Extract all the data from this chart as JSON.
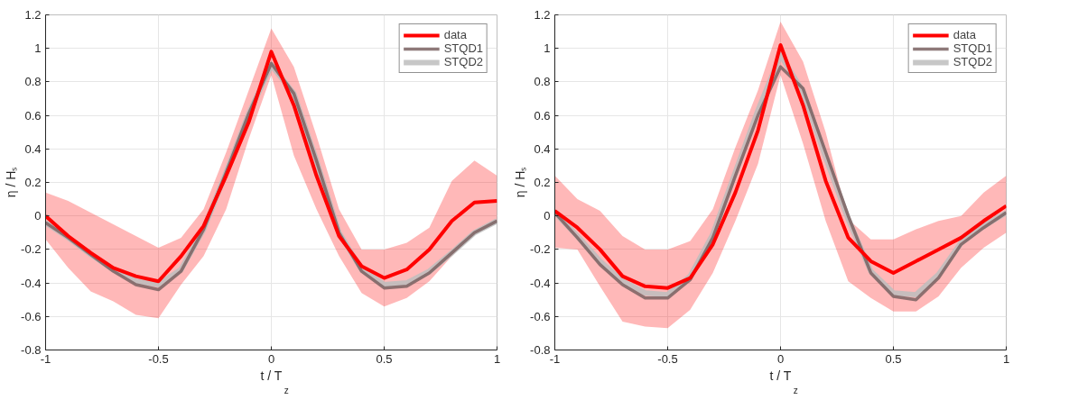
{
  "chart_data": [
    {
      "type": "line",
      "xlabel": "t / T$_{z}$",
      "ylabel": "η / Hₛ",
      "x": [
        -1,
        -0.9,
        -0.8,
        -0.7,
        -0.6,
        -0.5,
        -0.4,
        -0.3,
        -0.2,
        -0.1,
        0,
        0.1,
        0.2,
        0.3,
        0.4,
        0.5,
        0.6,
        0.7,
        0.8,
        0.9,
        1
      ],
      "series": [
        {
          "name": "data",
          "color": "#ff0000",
          "values": [
            0.0,
            -0.12,
            -0.22,
            -0.31,
            -0.36,
            -0.39,
            -0.24,
            -0.06,
            0.24,
            0.56,
            0.98,
            0.66,
            0.24,
            -0.12,
            -0.3,
            -0.37,
            -0.32,
            -0.2,
            -0.03,
            0.08,
            0.09
          ],
          "lower": [
            -0.14,
            -0.31,
            -0.45,
            -0.51,
            -0.59,
            -0.61,
            -0.41,
            -0.24,
            0.04,
            0.46,
            0.84,
            0.36,
            0.04,
            -0.24,
            -0.46,
            -0.54,
            -0.49,
            -0.39,
            -0.24,
            -0.1,
            -0.03
          ],
          "upper": [
            0.14,
            0.09,
            0.02,
            -0.05,
            -0.12,
            -0.19,
            -0.13,
            0.04,
            0.38,
            0.75,
            1.12,
            0.89,
            0.48,
            0.04,
            -0.2,
            -0.2,
            -0.16,
            -0.07,
            0.21,
            0.33,
            0.24
          ]
        },
        {
          "name": "STQD1",
          "color": "#7a6262",
          "values": [
            -0.04,
            -0.13,
            -0.23,
            -0.33,
            -0.41,
            -0.44,
            -0.33,
            -0.08,
            0.26,
            0.61,
            0.91,
            0.73,
            0.33,
            -0.1,
            -0.33,
            -0.43,
            -0.42,
            -0.34,
            -0.22,
            -0.1,
            -0.03
          ]
        },
        {
          "name": "STQD2",
          "color": "#bdbdbd",
          "values": [
            -0.04,
            -0.13,
            -0.23,
            -0.32,
            -0.39,
            -0.41,
            -0.32,
            -0.08,
            0.26,
            0.61,
            0.9,
            0.73,
            0.33,
            -0.1,
            -0.32,
            -0.41,
            -0.4,
            -0.33,
            -0.22,
            -0.1,
            -0.03
          ]
        }
      ],
      "xlim": [
        -1,
        1
      ],
      "xticks": [
        -1,
        -0.5,
        0,
        0.5,
        1
      ],
      "ylim": [
        -0.8,
        1.2
      ],
      "yticks": [
        -0.8,
        -0.6,
        -0.4,
        -0.2,
        0,
        0.2,
        0.4,
        0.6,
        0.8,
        1,
        1.2
      ],
      "grid": true,
      "legend": "top right",
      "line_style": "solid",
      "marker": "none"
    },
    {
      "type": "line",
      "xlabel": "t / T$_{z}$",
      "ylabel": "η / Hₛ",
      "x": [
        -1,
        -0.9,
        -0.8,
        -0.7,
        -0.6,
        -0.5,
        -0.4,
        -0.3,
        -0.2,
        -0.1,
        0,
        0.1,
        0.2,
        0.3,
        0.4,
        0.5,
        0.6,
        0.7,
        0.8,
        0.9,
        1
      ],
      "series": [
        {
          "name": "data",
          "color": "#ff0000",
          "values": [
            0.03,
            -0.07,
            -0.2,
            -0.36,
            -0.42,
            -0.43,
            -0.37,
            -0.17,
            0.14,
            0.51,
            1.02,
            0.66,
            0.21,
            -0.13,
            -0.27,
            -0.34,
            -0.27,
            -0.2,
            -0.13,
            -0.03,
            0.06
          ],
          "lower": [
            -0.19,
            -0.2,
            -0.42,
            -0.63,
            -0.66,
            -0.67,
            -0.56,
            -0.34,
            -0.03,
            0.31,
            0.84,
            0.43,
            -0.03,
            -0.39,
            -0.49,
            -0.57,
            -0.57,
            -0.48,
            -0.31,
            -0.19,
            -0.1
          ],
          "upper": [
            0.24,
            0.1,
            0.03,
            -0.12,
            -0.2,
            -0.2,
            -0.15,
            0.04,
            0.41,
            0.75,
            1.16,
            0.92,
            0.5,
            -0.02,
            -0.14,
            -0.14,
            -0.08,
            -0.03,
            0.0,
            0.14,
            0.24
          ]
        },
        {
          "name": "STQD1",
          "color": "#7a6262",
          "values": [
            0.02,
            -0.13,
            -0.29,
            -0.41,
            -0.49,
            -0.49,
            -0.38,
            -0.13,
            0.24,
            0.6,
            0.89,
            0.76,
            0.38,
            0.0,
            -0.34,
            -0.48,
            -0.5,
            -0.37,
            -0.17,
            -0.07,
            0.02
          ]
        },
        {
          "name": "STQD2",
          "color": "#bdbdbd",
          "values": [
            0.02,
            -0.12,
            -0.27,
            -0.39,
            -0.46,
            -0.47,
            -0.36,
            -0.11,
            0.26,
            0.63,
            0.96,
            0.74,
            0.35,
            -0.02,
            -0.33,
            -0.46,
            -0.47,
            -0.35,
            -0.16,
            -0.06,
            0.02
          ]
        }
      ],
      "xlim": [
        -1,
        1
      ],
      "xticks": [
        -1,
        -0.5,
        0,
        0.5,
        1
      ],
      "ylim": [
        -0.8,
        1.2
      ],
      "yticks": [
        -0.8,
        -0.6,
        -0.4,
        -0.2,
        0,
        0.2,
        0.4,
        0.6,
        0.8,
        1,
        1.2
      ],
      "grid": true,
      "legend": "top right",
      "line_style": "solid",
      "marker": "none"
    }
  ]
}
